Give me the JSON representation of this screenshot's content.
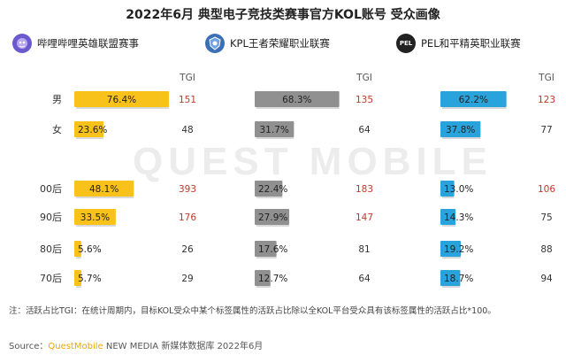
{
  "title": "2022年6月 典型电子竞技类赛事官方KOL账号 受众画像",
  "watermark": "QUEST MOBILE",
  "footnote": "注：活跃占比TGI：在统计周期内，目标KOL受众中某个标签属性的活跃占比除以全KOL平台受众具有该标签属性的活跃占比*100。",
  "source": {
    "label": "Source：",
    "brand": "QuestMobile",
    "rest": " NEW MEDIA 新媒体数据库 2022年6月"
  },
  "logos": [
    {
      "icon": "lol-mascot-icon",
      "color": "#6a5acd"
    },
    {
      "icon": "kpl-badge-icon",
      "color": "#3b6fb6"
    },
    {
      "icon": "pel-badge-icon",
      "color": "#222222",
      "text": "PEL"
    }
  ],
  "chart_data": {
    "type": "bar",
    "orientation": "horizontal",
    "categories": [
      "男",
      "女",
      "00后",
      "90后",
      "80后",
      "70后"
    ],
    "tgi_label": "TGI",
    "series": [
      {
        "name": "哔哩哔哩英雄联盟赛事",
        "color": "#f8c21a",
        "values": [
          76.4,
          23.6,
          48.1,
          33.5,
          5.6,
          5.7
        ],
        "labels": [
          "76.4%",
          "23.6%",
          "48.1%",
          "33.5%",
          "5.6%",
          "5.7%"
        ],
        "tgi": [
          151,
          48,
          393,
          176,
          26,
          29
        ]
      },
      {
        "name": "KPL王者荣耀职业联赛",
        "color": "#909090",
        "values": [
          68.3,
          31.7,
          22.4,
          27.9,
          17.6,
          12.7
        ],
        "labels": [
          "68.3%",
          "31.7%",
          "22.4%",
          "27.9%",
          "17.6%",
          "12.7%"
        ],
        "tgi": [
          135,
          64,
          183,
          147,
          81,
          64
        ]
      },
      {
        "name": "PEL和平精英职业联赛",
        "color": "#29a3dc",
        "values": [
          62.2,
          37.8,
          13.0,
          14.3,
          19.2,
          18.7
        ],
        "labels": [
          "62.2%",
          "37.8%",
          "13.0%",
          "14.3%",
          "19.2%",
          "18.7%"
        ],
        "tgi": [
          123,
          77,
          106,
          75,
          88,
          94
        ]
      }
    ],
    "tgi_highlight_color": "#c0392b",
    "tgi_normal_color": "#333333",
    "xlim": [
      0,
      100
    ]
  }
}
